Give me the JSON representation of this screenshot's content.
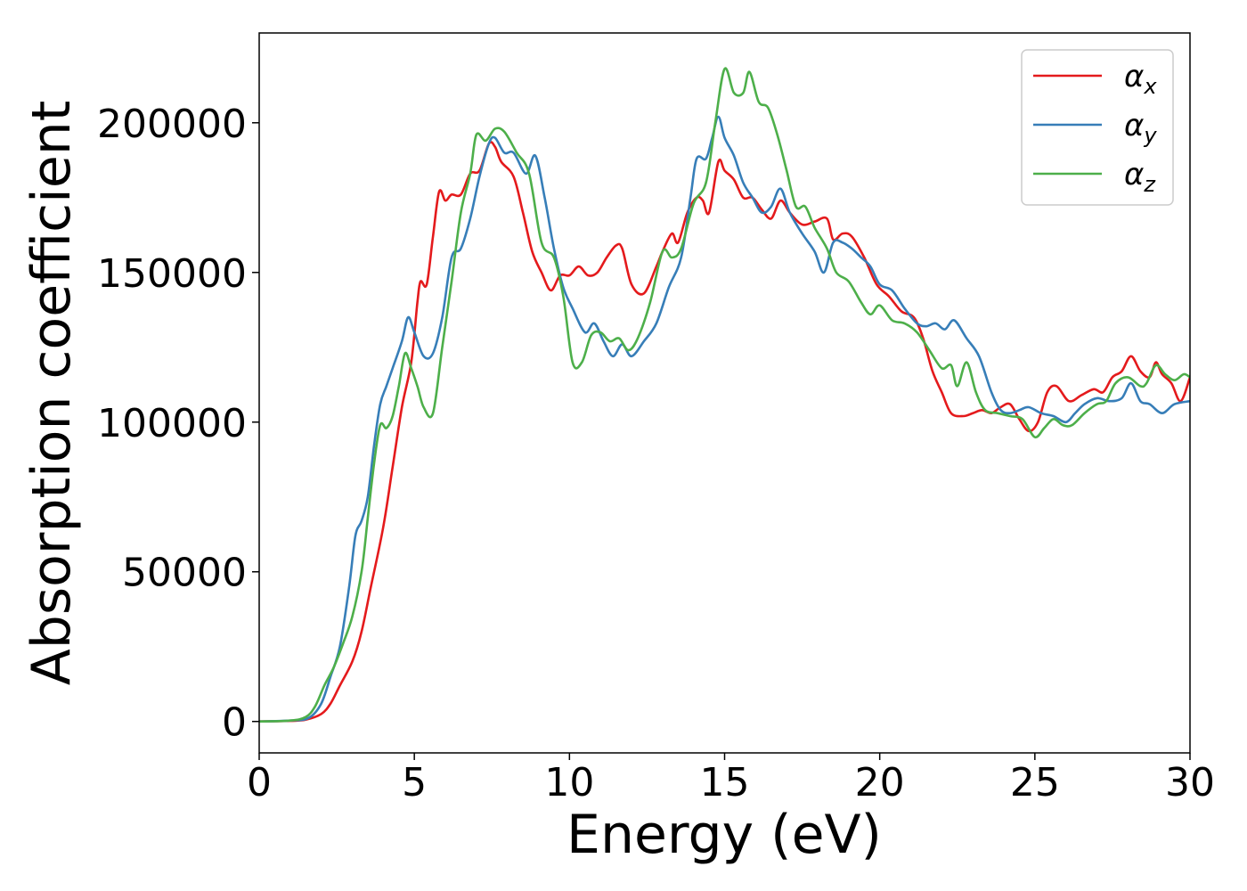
{
  "chart_data": {
    "type": "line",
    "title": "",
    "xlabel": "Energy (eV)",
    "ylabel": "Absorption coefficient",
    "xlim": [
      0,
      30
    ],
    "ylim": [
      -10500,
      230000
    ],
    "xticks": [
      0,
      5,
      10,
      15,
      20,
      25,
      30
    ],
    "yticks": [
      0,
      50000,
      100000,
      150000,
      200000
    ],
    "xtick_labels": [
      "0",
      "5",
      "10",
      "15",
      "20",
      "25",
      "30"
    ],
    "ytick_labels": [
      "0",
      "50000",
      "100000",
      "150000",
      "200000"
    ],
    "legend_position": "top-right",
    "grid": false,
    "series": [
      {
        "name": "α_x",
        "label_main": "α",
        "label_sub": "x",
        "color": "#e41a1c",
        "points": [
          [
            0,
            0
          ],
          [
            1,
            200
          ],
          [
            1.5,
            600
          ],
          [
            2,
            2500
          ],
          [
            2.3,
            6000
          ],
          [
            2.6,
            12000
          ],
          [
            3,
            20000
          ],
          [
            3.3,
            30000
          ],
          [
            3.6,
            45000
          ],
          [
            4,
            65000
          ],
          [
            4.3,
            85000
          ],
          [
            4.6,
            105000
          ],
          [
            4.9,
            120000
          ],
          [
            5.1,
            140000
          ],
          [
            5.2,
            147000
          ],
          [
            5.4,
            146000
          ],
          [
            5.6,
            162000
          ],
          [
            5.8,
            177000
          ],
          [
            6,
            174000
          ],
          [
            6.2,
            176000
          ],
          [
            6.5,
            176000
          ],
          [
            6.8,
            183000
          ],
          [
            7.1,
            184000
          ],
          [
            7.4,
            193000
          ],
          [
            7.6,
            192000
          ],
          [
            7.8,
            187000
          ],
          [
            8.2,
            182000
          ],
          [
            8.5,
            170000
          ],
          [
            8.8,
            157000
          ],
          [
            9.1,
            150000
          ],
          [
            9.4,
            144000
          ],
          [
            9.7,
            149000
          ],
          [
            10,
            149000
          ],
          [
            10.3,
            152000
          ],
          [
            10.6,
            149000
          ],
          [
            10.9,
            150000
          ],
          [
            11.2,
            155000
          ],
          [
            11.5,
            159000
          ],
          [
            11.7,
            158000
          ],
          [
            12,
            146000
          ],
          [
            12.4,
            143000
          ],
          [
            12.8,
            152000
          ],
          [
            13,
            157000
          ],
          [
            13.3,
            163000
          ],
          [
            13.5,
            160000
          ],
          [
            13.8,
            170000
          ],
          [
            14.1,
            175000
          ],
          [
            14.3,
            174000
          ],
          [
            14.5,
            170000
          ],
          [
            14.8,
            187000
          ],
          [
            15,
            184000
          ],
          [
            15.3,
            181000
          ],
          [
            15.6,
            175000
          ],
          [
            15.9,
            175000
          ],
          [
            16.2,
            171000
          ],
          [
            16.5,
            168000
          ],
          [
            16.8,
            174000
          ],
          [
            17.1,
            170000
          ],
          [
            17.5,
            166000
          ],
          [
            17.9,
            167000
          ],
          [
            18.3,
            168000
          ],
          [
            18.5,
            161000
          ],
          [
            18.8,
            163000
          ],
          [
            19.1,
            162000
          ],
          [
            19.5,
            155000
          ],
          [
            19.9,
            146000
          ],
          [
            20.3,
            142000
          ],
          [
            20.7,
            137000
          ],
          [
            21.1,
            135000
          ],
          [
            21.4,
            128000
          ],
          [
            21.7,
            117000
          ],
          [
            22,
            110000
          ],
          [
            22.3,
            103000
          ],
          [
            22.7,
            102000
          ],
          [
            23,
            103000
          ],
          [
            23.3,
            104000
          ],
          [
            23.6,
            103000
          ],
          [
            23.9,
            105000
          ],
          [
            24.2,
            106000
          ],
          [
            24.5,
            101000
          ],
          [
            24.8,
            97000
          ],
          [
            25.1,
            100000
          ],
          [
            25.4,
            110000
          ],
          [
            25.7,
            112000
          ],
          [
            26.1,
            107000
          ],
          [
            26.5,
            109000
          ],
          [
            26.9,
            111000
          ],
          [
            27.2,
            110000
          ],
          [
            27.5,
            115000
          ],
          [
            27.8,
            117000
          ],
          [
            28.1,
            122000
          ],
          [
            28.4,
            117000
          ],
          [
            28.7,
            115000
          ],
          [
            28.9,
            120000
          ],
          [
            29.1,
            116000
          ],
          [
            29.4,
            113000
          ],
          [
            29.7,
            107000
          ],
          [
            30,
            115000
          ]
        ]
      },
      {
        "name": "α_y",
        "label_main": "α",
        "label_sub": "y",
        "color": "#377eb8",
        "points": [
          [
            0,
            0
          ],
          [
            1,
            300
          ],
          [
            1.6,
            1200
          ],
          [
            2,
            6000
          ],
          [
            2.3,
            15000
          ],
          [
            2.6,
            25000
          ],
          [
            2.9,
            45000
          ],
          [
            3.1,
            62000
          ],
          [
            3.3,
            67000
          ],
          [
            3.5,
            75000
          ],
          [
            3.7,
            92000
          ],
          [
            3.9,
            106000
          ],
          [
            4.1,
            112000
          ],
          [
            4.3,
            118000
          ],
          [
            4.6,
            127000
          ],
          [
            4.8,
            135000
          ],
          [
            5,
            130000
          ],
          [
            5.3,
            122000
          ],
          [
            5.6,
            123000
          ],
          [
            5.9,
            135000
          ],
          [
            6.2,
            155000
          ],
          [
            6.5,
            158000
          ],
          [
            6.8,
            168000
          ],
          [
            7.1,
            182000
          ],
          [
            7.4,
            193000
          ],
          [
            7.6,
            195000
          ],
          [
            7.9,
            190000
          ],
          [
            8.2,
            190000
          ],
          [
            8.6,
            183000
          ],
          [
            8.9,
            189000
          ],
          [
            9.2,
            175000
          ],
          [
            9.5,
            158000
          ],
          [
            9.8,
            145000
          ],
          [
            10.1,
            138000
          ],
          [
            10.5,
            130000
          ],
          [
            10.8,
            133000
          ],
          [
            11.1,
            127000
          ],
          [
            11.4,
            122000
          ],
          [
            11.7,
            126000
          ],
          [
            12,
            122000
          ],
          [
            12.4,
            127000
          ],
          [
            12.8,
            133000
          ],
          [
            13.2,
            145000
          ],
          [
            13.6,
            155000
          ],
          [
            13.9,
            175000
          ],
          [
            14.1,
            188000
          ],
          [
            14.4,
            188000
          ],
          [
            14.6,
            195000
          ],
          [
            14.8,
            202000
          ],
          [
            15,
            195000
          ],
          [
            15.3,
            189000
          ],
          [
            15.6,
            180000
          ],
          [
            15.9,
            175000
          ],
          [
            16.2,
            170000
          ],
          [
            16.5,
            172000
          ],
          [
            16.8,
            178000
          ],
          [
            17.1,
            170000
          ],
          [
            17.5,
            163000
          ],
          [
            17.9,
            157000
          ],
          [
            18.2,
            150000
          ],
          [
            18.5,
            160000
          ],
          [
            18.8,
            160000
          ],
          [
            19.1,
            158000
          ],
          [
            19.4,
            155000
          ],
          [
            19.7,
            152000
          ],
          [
            20,
            146000
          ],
          [
            20.4,
            144000
          ],
          [
            20.8,
            138000
          ],
          [
            21.2,
            133000
          ],
          [
            21.5,
            132000
          ],
          [
            21.8,
            133000
          ],
          [
            22.1,
            131000
          ],
          [
            22.4,
            134000
          ],
          [
            22.8,
            128000
          ],
          [
            23.2,
            122000
          ],
          [
            23.6,
            110000
          ],
          [
            23.9,
            104000
          ],
          [
            24.2,
            103000
          ],
          [
            24.5,
            104000
          ],
          [
            24.8,
            105000
          ],
          [
            25.2,
            103000
          ],
          [
            25.6,
            102000
          ],
          [
            26,
            100000
          ],
          [
            26.3,
            103000
          ],
          [
            26.6,
            106000
          ],
          [
            27,
            108000
          ],
          [
            27.4,
            107000
          ],
          [
            27.8,
            108000
          ],
          [
            28.1,
            113000
          ],
          [
            28.4,
            107000
          ],
          [
            28.7,
            106000
          ],
          [
            29.1,
            103000
          ],
          [
            29.5,
            106000
          ],
          [
            30,
            107000
          ]
        ]
      },
      {
        "name": "α_z",
        "label_main": "α",
        "label_sub": "z",
        "color": "#4daf4a",
        "points": [
          [
            0,
            0
          ],
          [
            1,
            300
          ],
          [
            1.5,
            1500
          ],
          [
            1.8,
            5000
          ],
          [
            2.1,
            12000
          ],
          [
            2.4,
            18000
          ],
          [
            2.7,
            26000
          ],
          [
            3,
            35000
          ],
          [
            3.3,
            50000
          ],
          [
            3.5,
            68000
          ],
          [
            3.7,
            86000
          ],
          [
            3.9,
            99000
          ],
          [
            4.1,
            98000
          ],
          [
            4.3,
            102000
          ],
          [
            4.5,
            112000
          ],
          [
            4.7,
            123000
          ],
          [
            4.9,
            118000
          ],
          [
            5.1,
            112000
          ],
          [
            5.3,
            105000
          ],
          [
            5.6,
            103000
          ],
          [
            5.9,
            125000
          ],
          [
            6.2,
            147000
          ],
          [
            6.5,
            170000
          ],
          [
            6.8,
            183000
          ],
          [
            7,
            196000
          ],
          [
            7.3,
            194000
          ],
          [
            7.6,
            198000
          ],
          [
            7.9,
            197000
          ],
          [
            8.3,
            190000
          ],
          [
            8.7,
            183000
          ],
          [
            9.1,
            160000
          ],
          [
            9.5,
            155000
          ],
          [
            9.8,
            142000
          ],
          [
            10.1,
            120000
          ],
          [
            10.4,
            120000
          ],
          [
            10.7,
            129000
          ],
          [
            11,
            130000
          ],
          [
            11.3,
            127000
          ],
          [
            11.6,
            128000
          ],
          [
            11.9,
            124000
          ],
          [
            12.2,
            128000
          ],
          [
            12.6,
            140000
          ],
          [
            13,
            157000
          ],
          [
            13.3,
            155000
          ],
          [
            13.6,
            158000
          ],
          [
            14,
            173000
          ],
          [
            14.4,
            180000
          ],
          [
            14.7,
            200000
          ],
          [
            15,
            218000
          ],
          [
            15.3,
            210000
          ],
          [
            15.6,
            210000
          ],
          [
            15.8,
            217000
          ],
          [
            16.1,
            207000
          ],
          [
            16.4,
            205000
          ],
          [
            16.7,
            196000
          ],
          [
            17,
            184000
          ],
          [
            17.3,
            172000
          ],
          [
            17.6,
            172000
          ],
          [
            17.9,
            165000
          ],
          [
            18.3,
            158000
          ],
          [
            18.6,
            150000
          ],
          [
            19,
            147000
          ],
          [
            19.4,
            140000
          ],
          [
            19.7,
            136000
          ],
          [
            20,
            139000
          ],
          [
            20.4,
            134000
          ],
          [
            20.8,
            133000
          ],
          [
            21.2,
            130000
          ],
          [
            21.6,
            124000
          ],
          [
            22,
            118000
          ],
          [
            22.3,
            119000
          ],
          [
            22.5,
            112000
          ],
          [
            22.8,
            120000
          ],
          [
            23.1,
            110000
          ],
          [
            23.4,
            104000
          ],
          [
            23.8,
            103000
          ],
          [
            24.2,
            102000
          ],
          [
            24.6,
            101000
          ],
          [
            25,
            95000
          ],
          [
            25.3,
            98000
          ],
          [
            25.6,
            101000
          ],
          [
            25.9,
            99000
          ],
          [
            26.2,
            99000
          ],
          [
            26.6,
            103000
          ],
          [
            27,
            106000
          ],
          [
            27.3,
            107000
          ],
          [
            27.6,
            113000
          ],
          [
            28,
            115000
          ],
          [
            28.4,
            112000
          ],
          [
            28.6,
            113000
          ],
          [
            28.9,
            119000
          ],
          [
            29.2,
            116000
          ],
          [
            29.5,
            114000
          ],
          [
            29.8,
            116000
          ],
          [
            30,
            115000
          ]
        ]
      }
    ]
  }
}
